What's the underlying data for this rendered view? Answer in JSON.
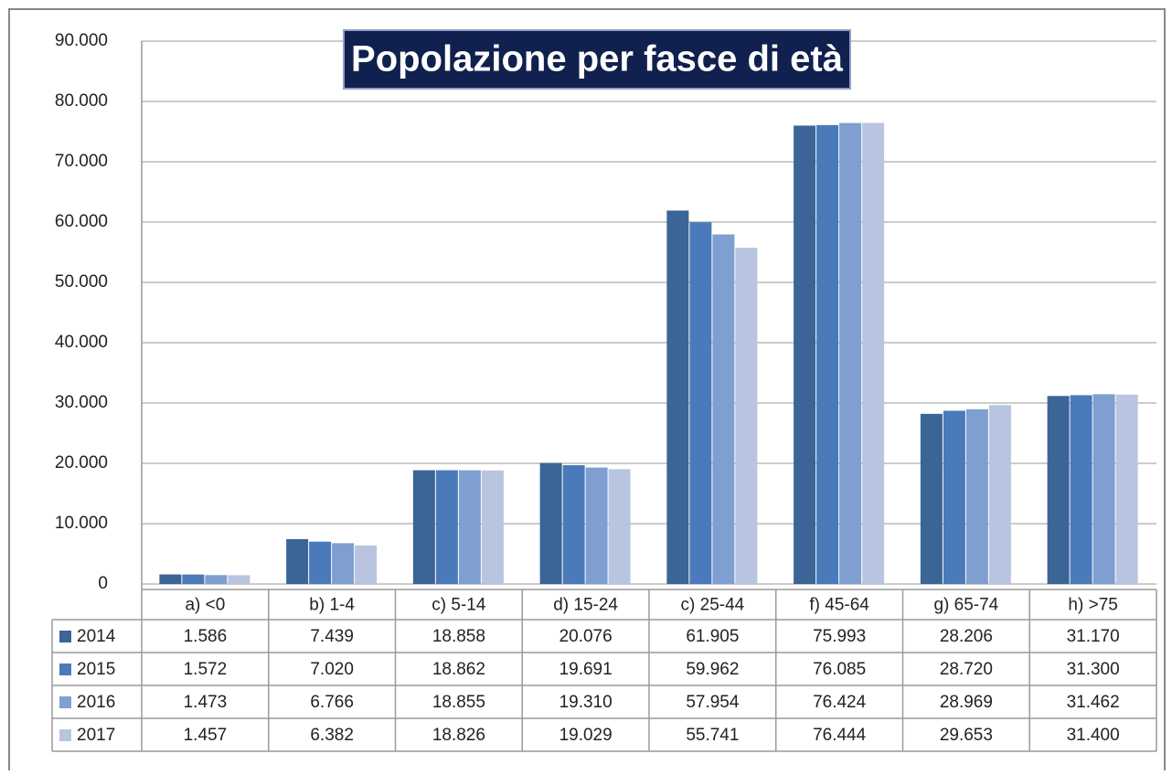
{
  "chart_data": {
    "type": "bar",
    "title": "Popolazione per fasce di età",
    "categories": [
      "a) <0",
      "b) 1-4",
      "c) 5-14",
      "d) 15-24",
      "c) 25-44",
      "f) 45-64",
      "g) 65-74",
      "h) >75"
    ],
    "series": [
      {
        "name": "2014",
        "color": "#3b6497",
        "values": [
          1586,
          7439,
          18858,
          20076,
          61905,
          75993,
          28206,
          31170
        ],
        "value_labels": [
          "1.586",
          "7.439",
          "18.858",
          "20.076",
          "61.905",
          "75.993",
          "28.206",
          "31.170"
        ]
      },
      {
        "name": "2015",
        "color": "#4a7aba",
        "values": [
          1572,
          7020,
          18862,
          19691,
          59962,
          76085,
          28720,
          31300
        ],
        "value_labels": [
          "1.572",
          "7.020",
          "18.862",
          "19.691",
          "59.962",
          "76.085",
          "28.720",
          "31.300"
        ]
      },
      {
        "name": "2016",
        "color": "#7f9fd0",
        "values": [
          1473,
          6766,
          18855,
          19310,
          57954,
          76424,
          28969,
          31462
        ],
        "value_labels": [
          "1.473",
          "6.766",
          "18.855",
          "19.310",
          "57.954",
          "76.424",
          "28.969",
          "31.462"
        ]
      },
      {
        "name": "2017",
        "color": "#b8c4e0",
        "values": [
          1457,
          6382,
          18826,
          19029,
          55741,
          76444,
          29653,
          31400
        ],
        "value_labels": [
          "1.457",
          "6.382",
          "18.826",
          "19.029",
          "55.741",
          "76.444",
          "29.653",
          "31.400"
        ]
      }
    ],
    "ylim": [
      0,
      90000
    ],
    "yticks": [
      0,
      {
        "value": 10000,
        "label": "10.000"
      },
      {
        "value": 20000,
        "label": "20.000"
      },
      {
        "value": 30000,
        "label": "30.000"
      },
      {
        "value": 40000,
        "label": "40.000"
      },
      {
        "value": 50000,
        "label": "50.000"
      },
      {
        "value": 60000,
        "label": "60.000"
      },
      {
        "value": 70000,
        "label": "70.000"
      },
      {
        "value": 80000,
        "label": "80.000"
      },
      {
        "value": 90000,
        "label": "90.000"
      }
    ],
    "grid": true
  }
}
